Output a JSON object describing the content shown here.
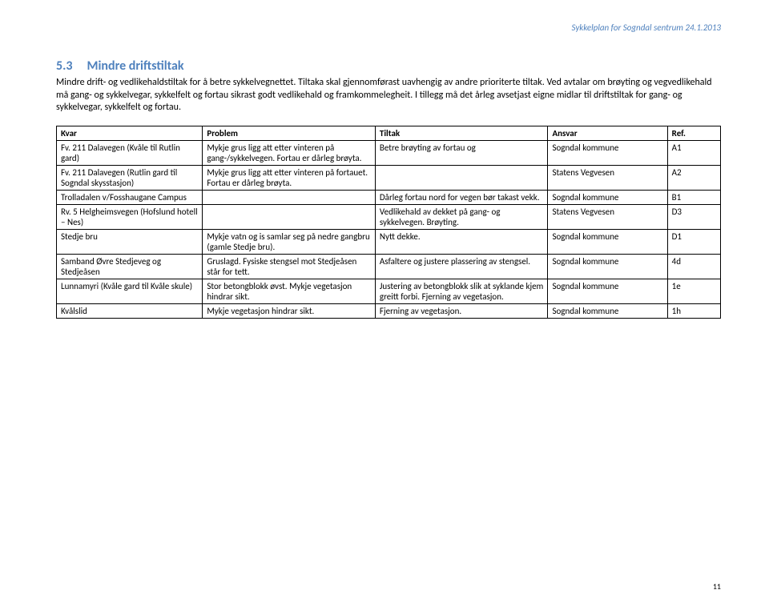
{
  "header": {
    "title": "Sykkelplan for Sogndal sentrum 24.1.2013"
  },
  "section": {
    "number": "5.3",
    "title": "Mindre driftstiltak",
    "paragraph": "Mindre drift- og vedlikehaldstiltak for å betre sykkelvegnettet. Tiltaka skal gjennomførast uavhengig av andre prioriterte tiltak. Ved avtalar om brøyting og vegvedlikehald må gang- og sykkelvegar, sykkelfelt og fortau sikrast godt vedlikehald og framkommelegheit. I tillegg må det årleg avsetjast eigne midlar til driftstiltak for gang- og sykkelvegar, sykkelfelt og fortau."
  },
  "table": {
    "columns": [
      "Kvar",
      "Problem",
      "Tiltak",
      "Ansvar",
      "Ref."
    ],
    "rows": [
      [
        "Fv. 211 Dalavegen (Kvåle til Rutlin gard)",
        "Mykje grus ligg att etter vinteren på gang-/sykkelvegen. Fortau er dårleg brøyta.",
        "Betre brøyting av fortau og",
        "Sogndal kommune",
        "A1"
      ],
      [
        "Fv. 211 Dalavegen (Rutlin gard til Sogndal skysstasjon)",
        "Mykje grus ligg att etter vinteren på fortauet. Fortau er dårleg brøyta.",
        "",
        "Statens Vegvesen",
        "A2"
      ],
      [
        "Trolladalen v/Fosshaugane Campus",
        "",
        "Dårleg fortau nord for vegen bør takast vekk.",
        "Sogndal kommune",
        "B1"
      ],
      [
        "Rv. 5 Helgheimsvegen (Hofslund hotell – Nes)",
        "",
        "Vedlikehald av dekket på gang- og sykkelvegen. Brøyting.",
        "Statens Vegvesen",
        "D3"
      ],
      [
        "Stedje bru",
        "Mykje vatn og is samlar seg på nedre gangbru (gamle Stedje bru).",
        "Nytt dekke.",
        "Sogndal kommune",
        "D1"
      ],
      [
        "Samband Øvre Stedjeveg og Stedjeåsen",
        "Gruslagd. Fysiske stengsel mot Stedjeåsen står for tett.",
        "Asfaltere og justere plassering av stengsel.",
        "Sogndal kommune",
        "4d"
      ],
      [
        "Lunnamyri (Kvåle gard til Kvåle skule)",
        "Stor betongblokk øvst. Mykje vegetasjon hindrar sikt.",
        "Justering av betongblokk slik at syklande kjem greitt forbi. Fjerning av vegetasjon.",
        "Sogndal kommune",
        "1e"
      ],
      [
        "Kvålslid",
        "Mykje vegetasjon hindrar sikt.",
        "Fjerning av vegetasjon.",
        "Sogndal kommune",
        "1h"
      ]
    ]
  },
  "footer": {
    "page_number": "11"
  },
  "colors": {
    "heading": "#4f81bd",
    "text": "#000000",
    "border": "#000000",
    "background": "#ffffff"
  },
  "typography": {
    "header_fontsize": 11,
    "title_fontsize": 16,
    "body_fontsize": 12,
    "table_fontsize": 11,
    "footer_fontsize": 10
  }
}
